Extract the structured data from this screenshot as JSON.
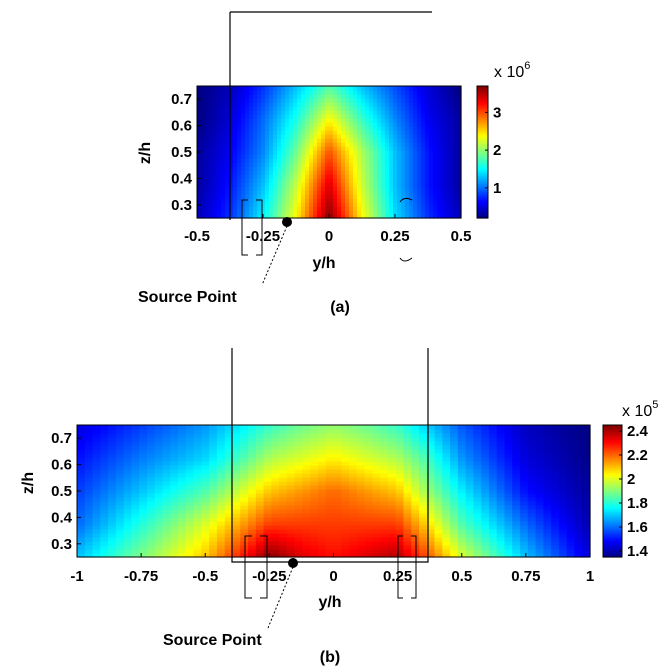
{
  "chart_data": [
    {
      "type": "heatmap",
      "panel_label": "(a)",
      "xlabel": "y/h",
      "ylabel": "z/h",
      "xlim": [
        -0.5,
        0.5
      ],
      "ylim": [
        0.25,
        0.75
      ],
      "xticks": [
        -0.5,
        -0.25,
        0,
        0.25,
        0.5
      ],
      "xtick_labels": [
        "-0.5",
        "-0.25",
        "0",
        "0.25",
        "0.5"
      ],
      "yticks": [
        0.3,
        0.4,
        0.5,
        0.6,
        0.7
      ],
      "ytick_labels": [
        "0.3",
        "0.4",
        "0.5",
        "0.6",
        "0.7"
      ],
      "colormap": "jet",
      "colorbar": {
        "range": [
          0.2,
          3.7
        ],
        "ticks": [
          1,
          2,
          3
        ],
        "tick_labels": [
          "1",
          "2",
          "3"
        ],
        "multiplier_base": "x 10",
        "multiplier_exp": "6"
      },
      "x": [
        -0.5,
        -0.375,
        -0.25,
        -0.125,
        0,
        0.125,
        0.25,
        0.375,
        0.5
      ],
      "y": [
        0.25,
        0.375,
        0.5,
        0.625,
        0.75
      ],
      "values_scaled": [
        [
          0.4,
          0.8,
          1.5,
          2.4,
          3.7,
          2.4,
          1.4,
          0.8,
          0.4
        ],
        [
          0.3,
          0.7,
          1.3,
          2.2,
          3.4,
          2.2,
          1.3,
          0.7,
          0.3
        ],
        [
          0.3,
          0.6,
          1.1,
          1.9,
          3.0,
          2.1,
          1.3,
          0.7,
          0.3
        ],
        [
          0.2,
          0.5,
          1.0,
          1.6,
          2.4,
          1.7,
          1.1,
          0.6,
          0.3
        ],
        [
          0.2,
          0.4,
          0.8,
          1.3,
          1.8,
          1.3,
          0.9,
          0.5,
          0.2
        ]
      ],
      "annotation": "Source Point",
      "source_point": [
        -0.15,
        0.25
      ]
    },
    {
      "type": "heatmap",
      "panel_label": "(b)",
      "xlabel": "y/h",
      "ylabel": "z/h",
      "xlim": [
        -1,
        1
      ],
      "ylim": [
        0.25,
        0.75
      ],
      "xticks": [
        -1,
        -0.75,
        -0.5,
        -0.25,
        0,
        0.25,
        0.5,
        0.75,
        1
      ],
      "xtick_labels": [
        "-1",
        "-0.75",
        "-0.5",
        "-0.25",
        "0",
        "0.25",
        "0.5",
        "0.75",
        "1"
      ],
      "yticks": [
        0.3,
        0.4,
        0.5,
        0.6,
        0.7
      ],
      "ytick_labels": [
        "0.3",
        "0.4",
        "0.5",
        "0.6",
        "0.7"
      ],
      "colormap": "jet",
      "colorbar": {
        "range": [
          1.35,
          2.45
        ],
        "ticks": [
          1.4,
          1.6,
          1.8,
          2,
          2.2,
          2.4
        ],
        "tick_labels": [
          "1.4",
          "1.6",
          "1.8",
          "2",
          "2.2",
          "2.4"
        ],
        "multiplier_base": "x 10",
        "multiplier_exp": "5"
      },
      "x": [
        -1,
        -0.75,
        -0.5,
        -0.35,
        -0.25,
        -0.125,
        0,
        0.125,
        0.25,
        0.35,
        0.5,
        0.75,
        1
      ],
      "y": [
        0.25,
        0.375,
        0.5,
        0.625,
        0.75
      ],
      "values_scaled": [
        [
          1.7,
          1.9,
          2.1,
          2.3,
          2.45,
          2.35,
          2.3,
          2.35,
          2.4,
          2.25,
          2.0,
          1.7,
          1.45
        ],
        [
          1.6,
          1.8,
          2.0,
          2.15,
          2.25,
          2.25,
          2.25,
          2.25,
          2.25,
          2.1,
          1.85,
          1.6,
          1.4
        ],
        [
          1.55,
          1.7,
          1.85,
          2.0,
          2.1,
          2.15,
          2.2,
          2.15,
          2.1,
          1.95,
          1.75,
          1.5,
          1.38
        ],
        [
          1.5,
          1.62,
          1.72,
          1.85,
          1.95,
          2.0,
          2.05,
          2.0,
          1.95,
          1.85,
          1.65,
          1.45,
          1.36
        ],
        [
          1.45,
          1.55,
          1.65,
          1.75,
          1.82,
          1.88,
          1.92,
          1.88,
          1.82,
          1.72,
          1.58,
          1.42,
          1.35
        ]
      ],
      "annotation": "Source Point",
      "source_point": [
        -0.15,
        0.25
      ]
    }
  ]
}
